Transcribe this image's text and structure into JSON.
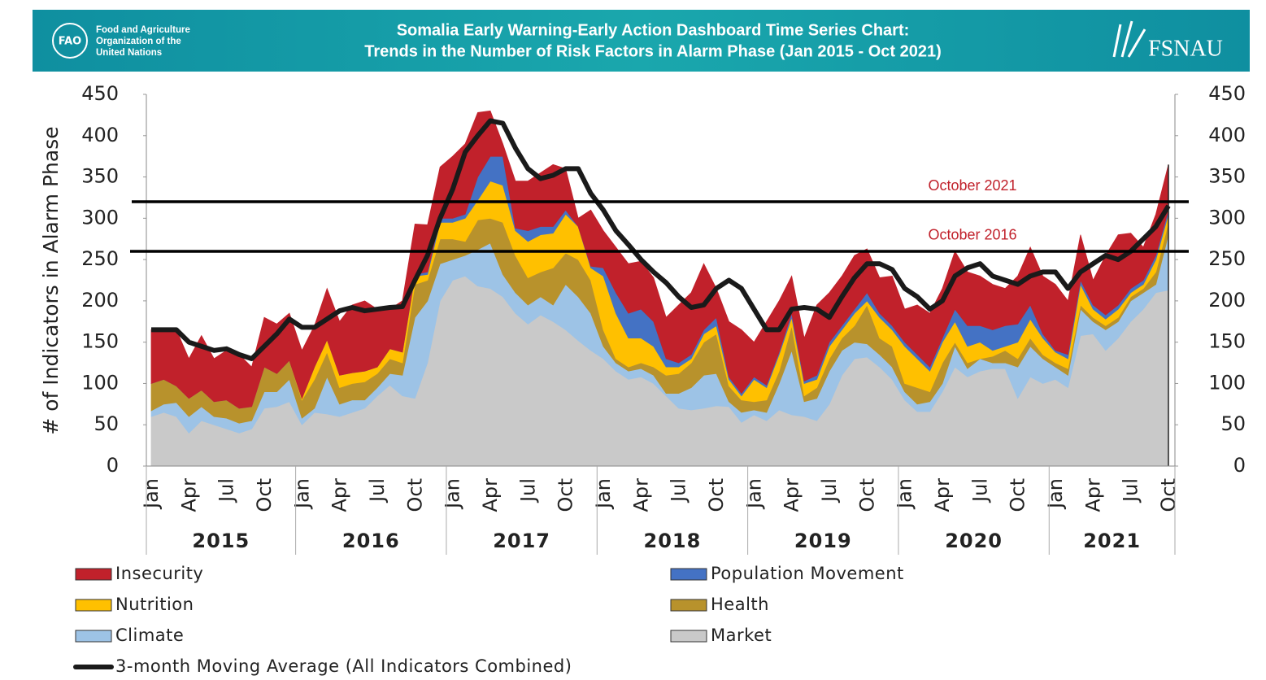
{
  "header": {
    "org_lines": [
      "Food and Agriculture",
      "Organization of the",
      "United Nations"
    ],
    "title_lines": [
      "Somalia Early Warning-Early Action Dashboard Time Series Chart:",
      "Trends in the Number of Risk Factors in Alarm Phase (Jan 2015 - Oct 2021)"
    ],
    "partner": "FSNAU"
  },
  "chart_data": {
    "type": "area",
    "stacked": true,
    "ylabel": "# of Indicators in Alarm Phase",
    "ylim": [
      0,
      450
    ],
    "yticks": [
      0,
      50,
      100,
      150,
      200,
      250,
      300,
      350,
      400,
      450
    ],
    "y2lim": [
      0,
      450
    ],
    "y2ticks": [
      0,
      50,
      100,
      150,
      200,
      250,
      300,
      350,
      400,
      450
    ],
    "categories": [
      "Jan",
      null,
      null,
      "Apr",
      null,
      null,
      "Jul",
      null,
      null,
      "Oct",
      null,
      null,
      "Jan",
      null,
      null,
      "Apr",
      null,
      null,
      "Jul",
      null,
      null,
      "Oct",
      null,
      null,
      "Jan",
      null,
      null,
      "Apr",
      null,
      null,
      "Jul",
      null,
      null,
      "Oct",
      null,
      null,
      "Jan",
      null,
      null,
      "Apr",
      null,
      null,
      "Jul",
      null,
      null,
      "Oct",
      null,
      null,
      "Jan",
      null,
      null,
      "Apr",
      null,
      null,
      "Jul",
      null,
      null,
      "Oct",
      null,
      null,
      "Jan",
      null,
      null,
      "Apr",
      null,
      null,
      "Jul",
      null,
      null,
      "Oct",
      null,
      null,
      "Jan",
      null,
      null,
      "Apr",
      null,
      null,
      "Jul",
      null,
      null,
      "Oct"
    ],
    "year_labels": [
      "2015",
      "2016",
      "2017",
      "2018",
      "2019",
      "2020",
      "2021"
    ],
    "series": [
      {
        "name": "Market",
        "color": "#c9c9c9",
        "values": [
          60,
          65,
          60,
          40,
          55,
          50,
          45,
          40,
          45,
          70,
          72,
          78,
          50,
          65,
          63,
          60,
          65,
          70,
          85,
          98,
          85,
          82,
          125,
          200,
          225,
          230,
          218,
          215,
          205,
          185,
          172,
          183,
          175,
          165,
          152,
          140,
          130,
          115,
          105,
          108,
          100,
          85,
          70,
          68,
          70,
          73,
          72,
          53,
          62,
          55,
          68,
          62,
          60,
          55,
          75,
          110,
          130,
          132,
          120,
          105,
          80,
          66,
          66,
          90,
          120,
          108,
          115,
          118,
          118,
          82,
          108,
          100,
          105,
          95,
          158,
          160,
          140,
          155,
          175,
          190,
          210,
          213
        ]
      },
      {
        "name": "Climate",
        "color": "#9dc3e6",
        "values": [
          7,
          10,
          17,
          20,
          17,
          10,
          13,
          12,
          10,
          20,
          18,
          27,
          8,
          5,
          45,
          15,
          15,
          10,
          10,
          14,
          25,
          98,
          75,
          45,
          25,
          25,
          44,
          55,
          27,
          25,
          23,
          22,
          20,
          55,
          53,
          45,
          15,
          10,
          10,
          10,
          10,
          3,
          18,
          27,
          40,
          39,
          6,
          12,
          6,
          10,
          32,
          78,
          18,
          27,
          40,
          30,
          20,
          16,
          15,
          15,
          10,
          9,
          12,
          10,
          25,
          10,
          15,
          7,
          7,
          38,
          37,
          30,
          15,
          15,
          32,
          15,
          25,
          20,
          25,
          20,
          10,
          67
        ]
      },
      {
        "name": "Health",
        "color": "#b8922c",
        "values": [
          33,
          30,
          20,
          22,
          20,
          18,
          22,
          18,
          17,
          30,
          22,
          23,
          22,
          35,
          30,
          20,
          20,
          22,
          17,
          18,
          15,
          40,
          25,
          30,
          25,
          17,
          36,
          30,
          63,
          45,
          33,
          30,
          45,
          38,
          45,
          40,
          20,
          5,
          5,
          7,
          10,
          22,
          24,
          30,
          40,
          48,
          19,
          15,
          10,
          15,
          15,
          30,
          7,
          13,
          15,
          15,
          20,
          47,
          20,
          25,
          10,
          20,
          12,
          25,
          5,
          7,
          0,
          8,
          15,
          10,
          10,
          5,
          5,
          8,
          5,
          5,
          5,
          5,
          5,
          5,
          15,
          15
        ]
      },
      {
        "name": "Nutrition",
        "color": "#ffc000",
        "values": [
          0,
          0,
          0,
          0,
          0,
          0,
          0,
          0,
          0,
          0,
          0,
          0,
          2,
          15,
          15,
          15,
          13,
          13,
          8,
          12,
          13,
          10,
          7,
          20,
          20,
          28,
          24,
          45,
          45,
          30,
          44,
          45,
          42,
          47,
          40,
          15,
          65,
          55,
          35,
          30,
          25,
          10,
          8,
          5,
          10,
          10,
          8,
          5,
          27,
          15,
          20,
          10,
          15,
          10,
          15,
          10,
          15,
          5,
          25,
          20,
          45,
          35,
          25,
          25,
          25,
          20,
          20,
          7,
          5,
          20,
          23,
          20,
          13,
          12,
          25,
          10,
          8,
          10,
          5,
          5,
          15,
          10
        ]
      },
      {
        "name": "Population Movement",
        "color": "#4472c4",
        "values": [
          0,
          0,
          0,
          0,
          0,
          0,
          0,
          0,
          0,
          0,
          0,
          0,
          0,
          0,
          0,
          0,
          0,
          0,
          0,
          0,
          0,
          2,
          3,
          5,
          5,
          5,
          28,
          30,
          35,
          3,
          13,
          10,
          8,
          5,
          0,
          2,
          10,
          25,
          30,
          35,
          30,
          10,
          5,
          5,
          5,
          10,
          3,
          3,
          3,
          3,
          3,
          5,
          3,
          5,
          5,
          5,
          5,
          10,
          5,
          5,
          5,
          5,
          5,
          5,
          15,
          25,
          20,
          25,
          25,
          22,
          17,
          5,
          2,
          5,
          5,
          5,
          5,
          5,
          5,
          5,
          5,
          5
        ]
      },
      {
        "name": "Insecurity",
        "color": "#c1212b",
        "values": [
          65,
          60,
          68,
          48,
          66,
          52,
          60,
          65,
          48,
          60,
          60,
          57,
          58,
          50,
          62,
          65,
          82,
          85,
          70,
          48,
          62,
          61,
          57,
          62,
          75,
          85,
          78,
          55,
          15,
          57,
          60,
          65,
          75,
          50,
          10,
          68,
          45,
          55,
          60,
          58,
          53,
          50,
          70,
          75,
          80,
          35,
          67,
          77,
          42,
          77,
          62,
          45,
          52,
          85,
          60,
          60,
          65,
          53,
          43,
          60,
          40,
          60,
          65,
          60,
          70,
          65,
          60,
          55,
          45,
          58,
          70,
          70,
          80,
          65,
          55,
          30,
          72,
          85,
          67,
          40,
          50,
          55
        ]
      }
    ],
    "legend_order": [
      "Insecurity",
      "Population Movement",
      "Nutrition",
      "Health",
      "Climate",
      "Market"
    ],
    "moving_average": {
      "name": "3-month Moving Average (All Indicators Combined)",
      "color": "#1a1a1a",
      "values": [
        165,
        165,
        165,
        150,
        145,
        140,
        142,
        135,
        130,
        145,
        160,
        178,
        168,
        168,
        178,
        188,
        192,
        188,
        190,
        192,
        193,
        225,
        255,
        300,
        335,
        380,
        400,
        418,
        415,
        385,
        360,
        348,
        352,
        360,
        360,
        330,
        310,
        285,
        268,
        250,
        235,
        222,
        205,
        192,
        195,
        215,
        225,
        215,
        190,
        165,
        165,
        190,
        192,
        190,
        180,
        205,
        228,
        245,
        245,
        238,
        215,
        205,
        190,
        200,
        230,
        240,
        245,
        230,
        225,
        220,
        230,
        235,
        235,
        215,
        235,
        245,
        255,
        250,
        260,
        275,
        290,
        315
      ]
    },
    "reference_lines": [
      {
        "label": "October 2021",
        "value": 320
      },
      {
        "label": "October 2016",
        "value": 260
      }
    ]
  }
}
